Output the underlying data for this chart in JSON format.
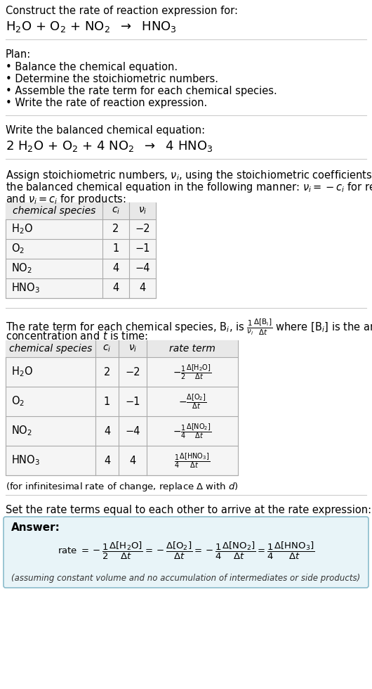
{
  "bg_color": "#ffffff",
  "text_color": "#000000",
  "title_line1": "Construct the rate of reaction expression for:",
  "plan_header": "Plan:",
  "plan_items": [
    "• Balance the chemical equation.",
    "• Determine the stoichiometric numbers.",
    "• Assemble the rate term for each chemical species.",
    "• Write the rate of reaction expression."
  ],
  "balanced_header": "Write the balanced chemical equation:",
  "stoich_assign_text1": "Assign stoichiometric numbers, $\\nu_i$, using the stoichiometric coefficients, $c_i$, from",
  "stoich_assign_text2": "the balanced chemical equation in the following manner: $\\nu_i = -c_i$ for reactants",
  "stoich_assign_text3": "and $\\nu_i = c_i$ for products:",
  "table1_headers": [
    "chemical species",
    "$c_i$",
    "$\\nu_i$"
  ],
  "table1_rows": [
    [
      "H$_2$O",
      "2",
      "−2"
    ],
    [
      "O$_2$",
      "1",
      "−1"
    ],
    [
      "NO$_2$",
      "4",
      "−4"
    ],
    [
      "HNO$_3$",
      "4",
      "4"
    ]
  ],
  "table2_headers": [
    "chemical species",
    "$c_i$",
    "$\\nu_i$",
    "rate term"
  ],
  "table2_rows": [
    [
      "H$_2$O",
      "2",
      "−2",
      "$-\\frac{1}{2}\\frac{\\Delta[\\mathrm{H_2O}]}{\\Delta t}$"
    ],
    [
      "O$_2$",
      "1",
      "−1",
      "$-\\frac{\\Delta[\\mathrm{O_2}]}{\\Delta t}$"
    ],
    [
      "NO$_2$",
      "4",
      "−4",
      "$-\\frac{1}{4}\\frac{\\Delta[\\mathrm{NO_2}]}{\\Delta t}$"
    ],
    [
      "HNO$_3$",
      "4",
      "4",
      "$\\frac{1}{4}\\frac{\\Delta[\\mathrm{HNO_3}]}{\\Delta t}$"
    ]
  ],
  "infinitesimal_note": "(for infinitesimal rate of change, replace Δ with $d$)",
  "set_equal_text": "Set the rate terms equal to each other to arrive at the rate expression:",
  "answer_box_color": "#e8f4f8",
  "answer_box_border": "#8bbccc",
  "answer_label": "Answer:",
  "final_note": "(assuming constant volume and no accumulation of intermediates or side products)"
}
